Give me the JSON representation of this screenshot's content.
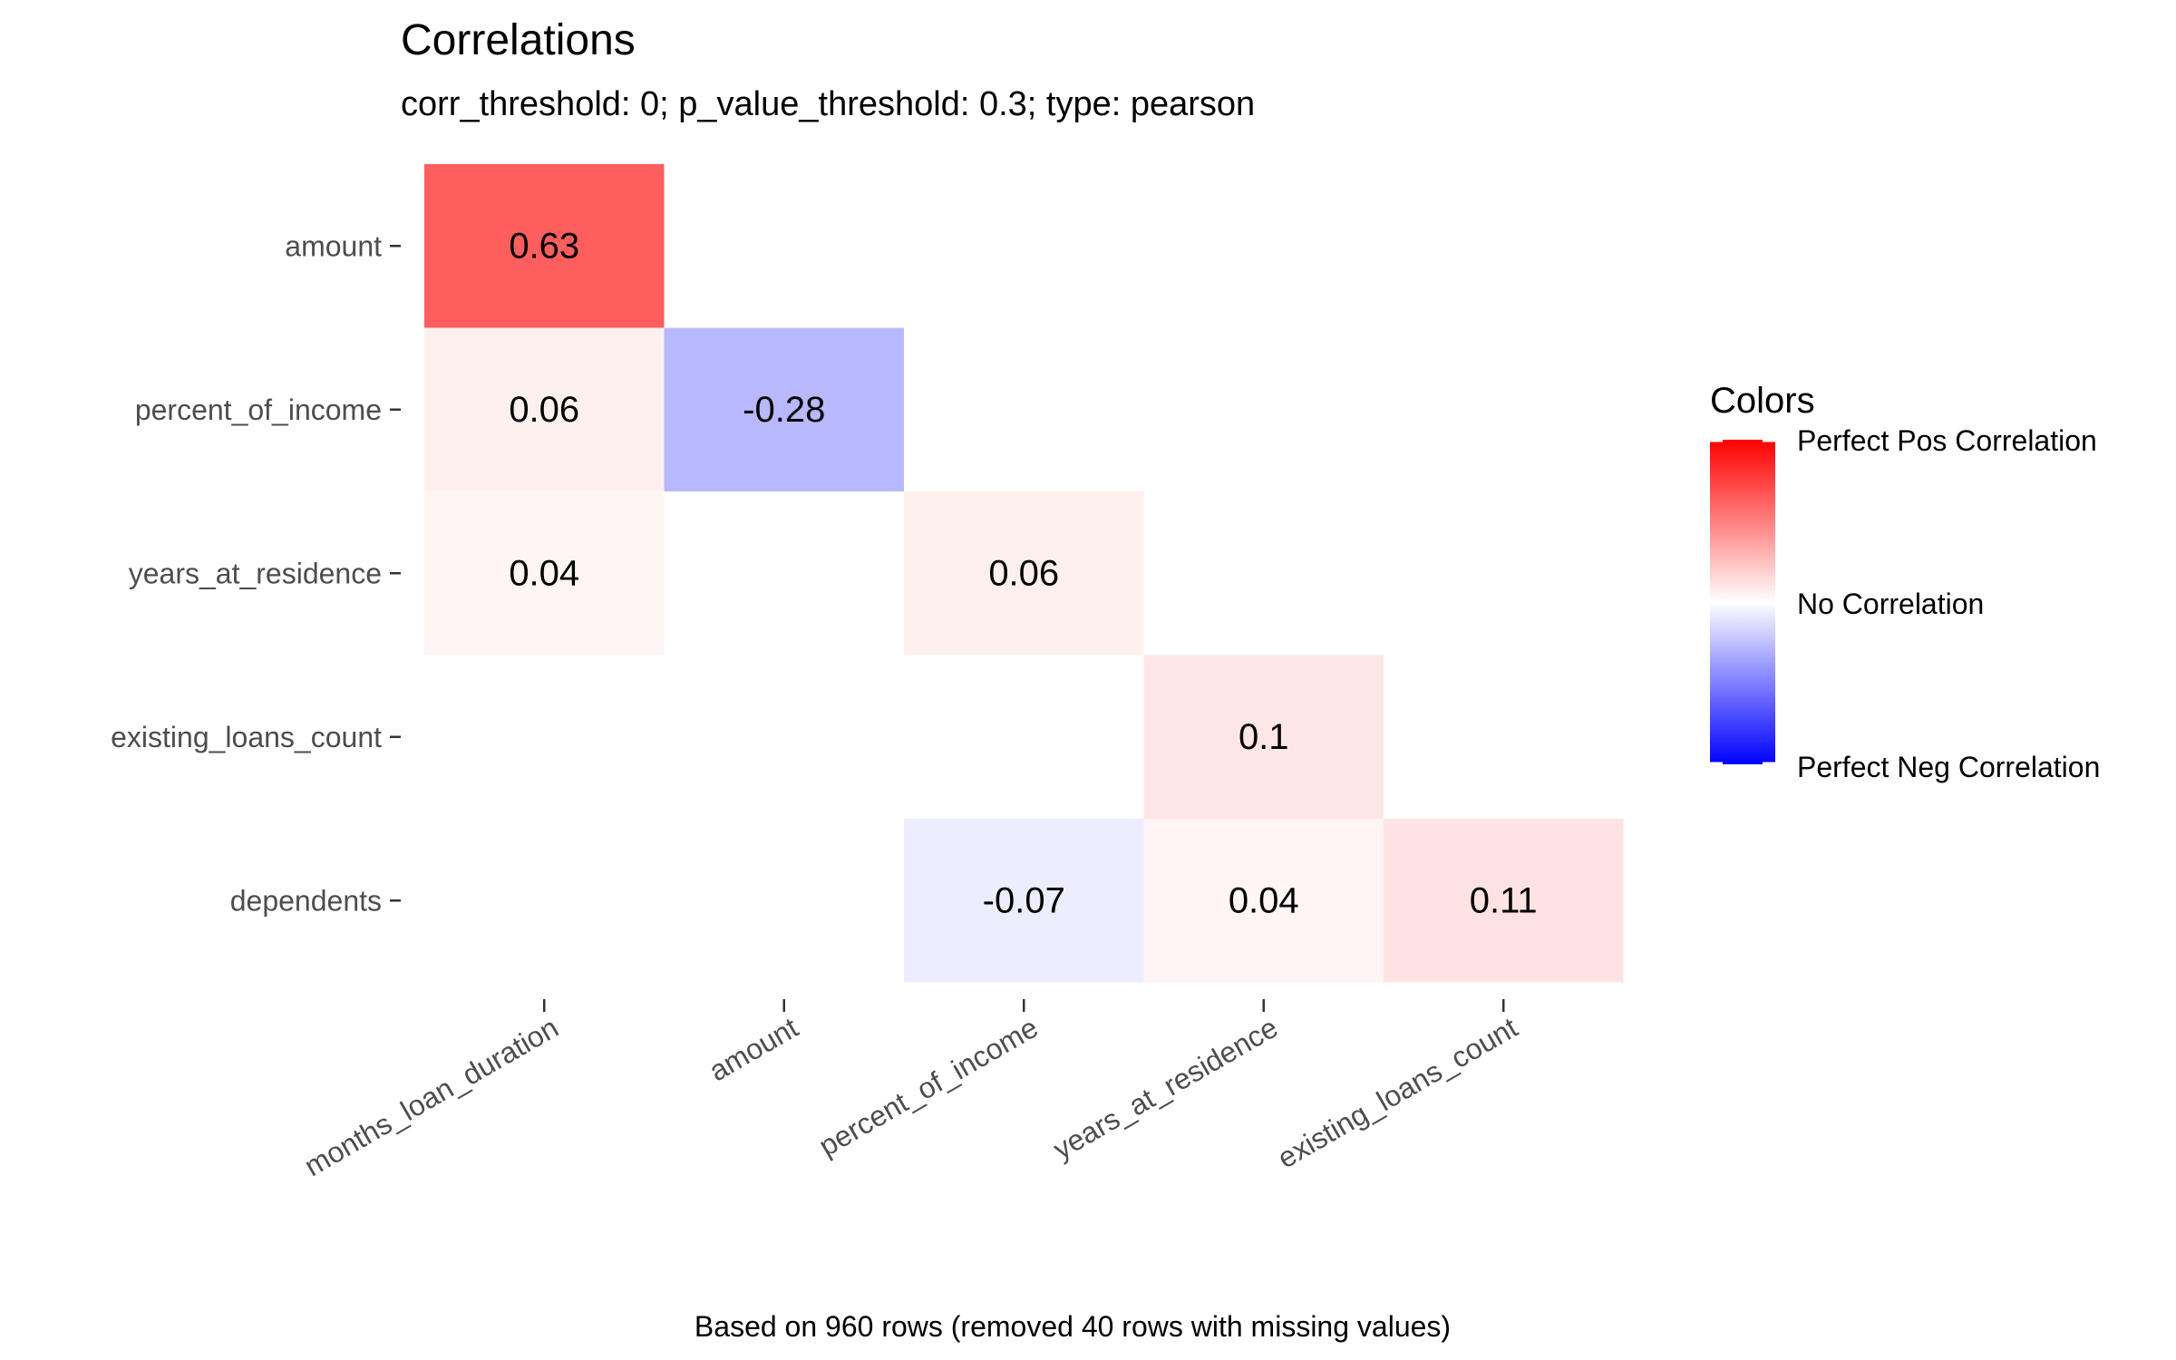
{
  "chart_data": {
    "type": "heatmap",
    "title": "Correlations",
    "subtitle": "corr_threshold: 0; p_value_threshold: 0.3; type: pearson",
    "caption": "Based on 960 rows (removed 40 rows with missing values)",
    "x_categories": [
      "months_loan_duration",
      "amount",
      "percent_of_income",
      "years_at_residence",
      "existing_loans_count"
    ],
    "y_categories": [
      "amount",
      "percent_of_income",
      "years_at_residence",
      "existing_loans_count",
      "dependents"
    ],
    "cells": [
      {
        "x": "months_loan_duration",
        "y": "amount",
        "value": 0.63,
        "label": "0.63"
      },
      {
        "x": "months_loan_duration",
        "y": "percent_of_income",
        "value": 0.06,
        "label": "0.06"
      },
      {
        "x": "amount",
        "y": "percent_of_income",
        "value": -0.28,
        "label": "-0.28"
      },
      {
        "x": "months_loan_duration",
        "y": "years_at_residence",
        "value": 0.04,
        "label": "0.04"
      },
      {
        "x": "percent_of_income",
        "y": "years_at_residence",
        "value": 0.06,
        "label": "0.06"
      },
      {
        "x": "years_at_residence",
        "y": "existing_loans_count",
        "value": 0.1,
        "label": "0.1"
      },
      {
        "x": "percent_of_income",
        "y": "dependents",
        "value": -0.07,
        "label": "-0.07"
      },
      {
        "x": "years_at_residence",
        "y": "dependents",
        "value": 0.04,
        "label": "0.04"
      },
      {
        "x": "existing_loans_count",
        "y": "dependents",
        "value": 0.11,
        "label": "0.11"
      }
    ],
    "legend": {
      "title": "Colors",
      "labels": [
        "Perfect Pos Correlation",
        "No Correlation",
        "Perfect Neg Correlation"
      ],
      "position": "right"
    },
    "colors": {
      "positive": "#ff0000",
      "neutral": "#ffffff",
      "negative": "#0000ff"
    },
    "value_range": [
      -1,
      1
    ],
    "grid": false
  }
}
